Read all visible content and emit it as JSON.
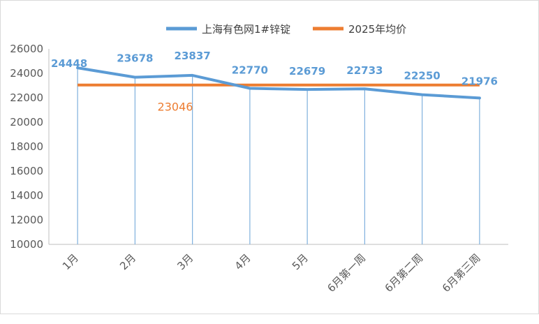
{
  "chart_data": {
    "type": "line",
    "categories": [
      "1月",
      "2月",
      "3月",
      "4月",
      "5月",
      "6月第一周",
      "6月第二周",
      "6月第三周"
    ],
    "series": [
      {
        "name": "上海有色网1#锌锭",
        "values": [
          24448,
          23678,
          23837,
          22770,
          22679,
          22733,
          22250,
          21976
        ],
        "labels": [
          "24448",
          "23678",
          "23837",
          "22770",
          "22679",
          "22733",
          "22250",
          "21976"
        ],
        "color": "#5b9bd5"
      },
      {
        "name": "2025年均价",
        "value": 23046,
        "label": "23046",
        "color": "#ed7d31"
      }
    ],
    "yticks": [
      "10000",
      "12000",
      "14000",
      "16000",
      "18000",
      "20000",
      "22000",
      "24000",
      "26000"
    ],
    "ylim": [
      10000,
      26000
    ],
    "grid": false,
    "drop_lines": true,
    "legend_position": "top"
  }
}
